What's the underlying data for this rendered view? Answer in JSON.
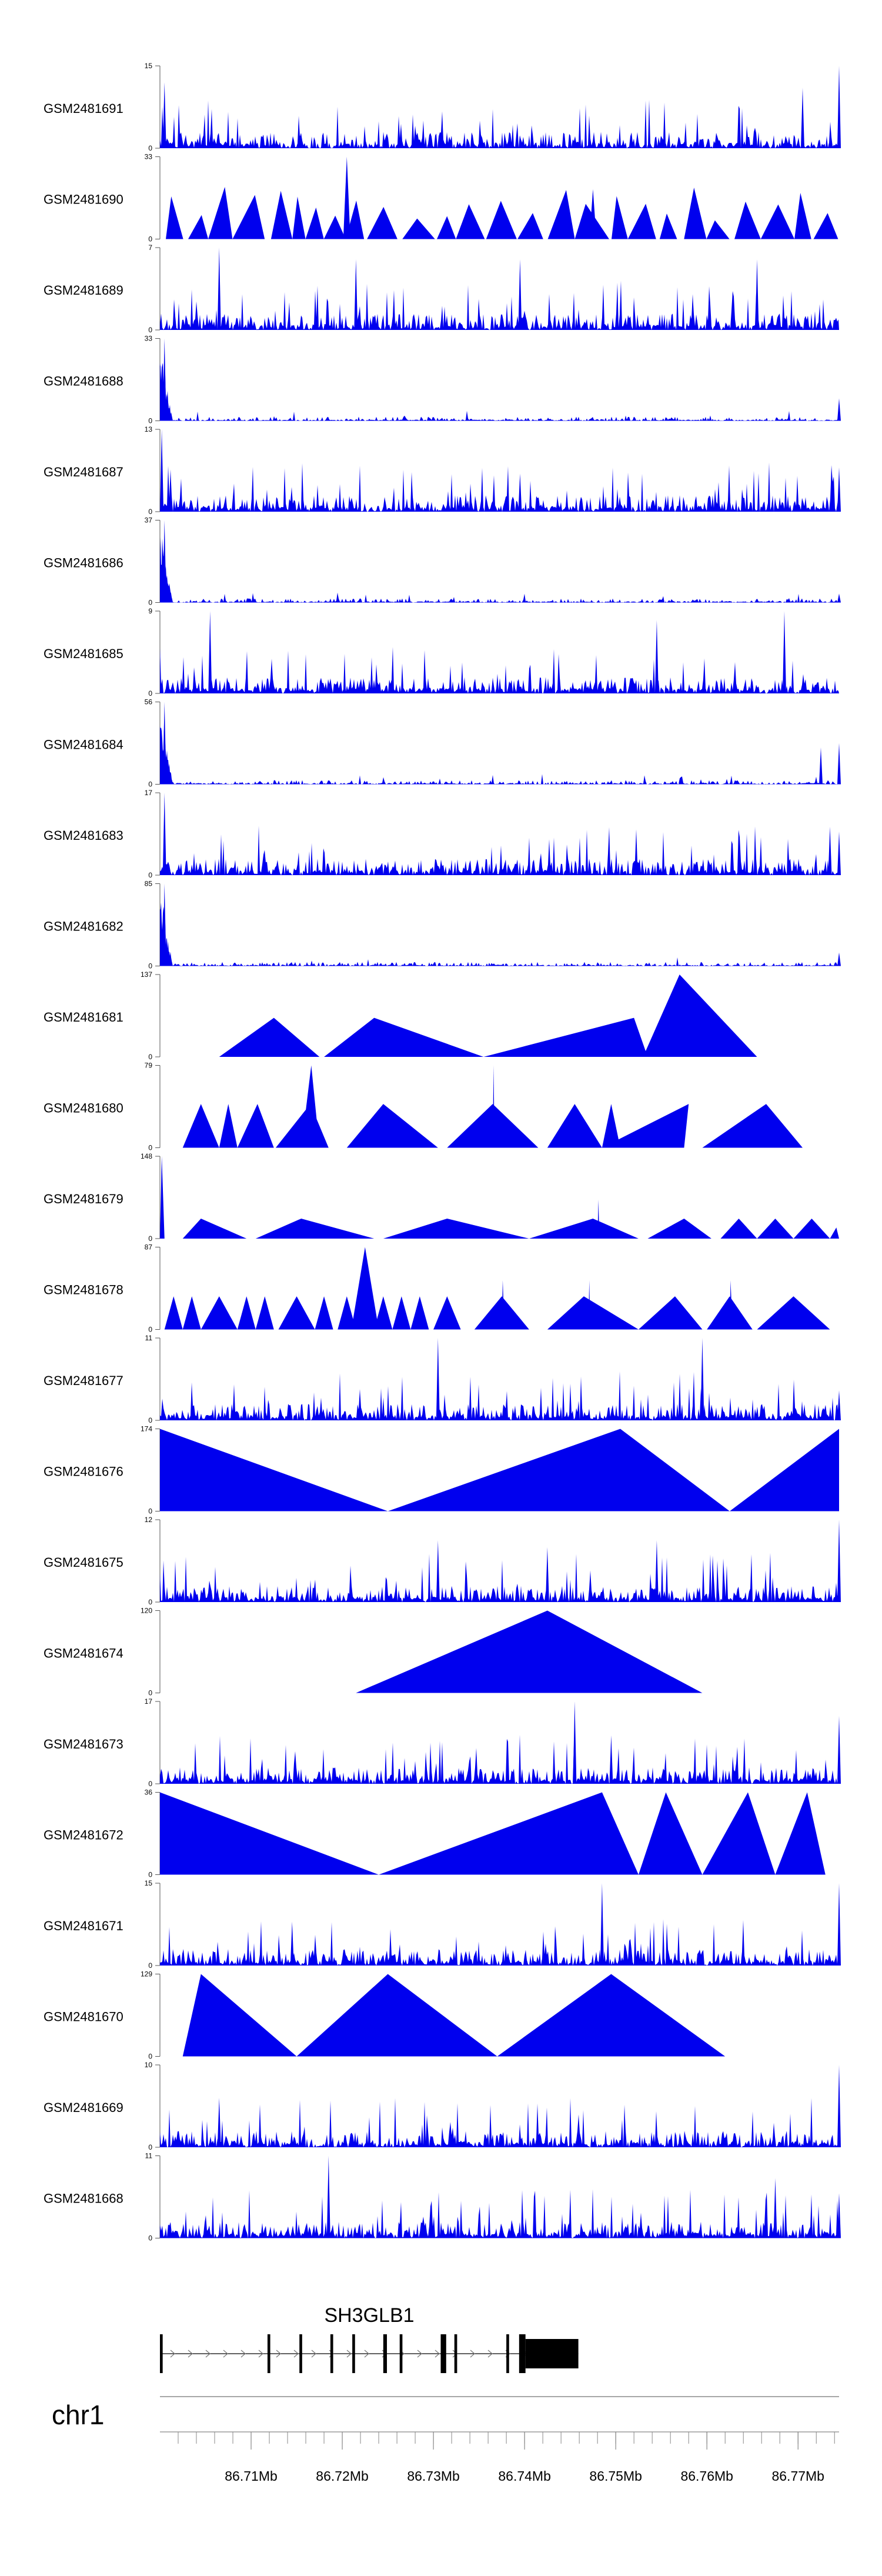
{
  "chart_data": {
    "type": "area",
    "title": "",
    "series_color": "#0000ee",
    "x_unit": "Mb",
    "x_range": [
      86.7,
      86.7745
    ],
    "tracks": [
      {
        "name": "GSM2481691",
        "ymax": 15,
        "style": "noisy",
        "peaks": [
          [
            86.7005,
            12
          ],
          [
            86.7705,
            11
          ],
          [
            86.7745,
            15
          ]
        ]
      },
      {
        "name": "GSM2481690",
        "ymax": 33,
        "style": "triangles",
        "peaks": [
          [
            86.7205,
            33
          ],
          [
            86.7475,
            20
          ]
        ]
      },
      {
        "name": "GSM2481689",
        "ymax": 7,
        "style": "noisy",
        "peaks": [
          [
            86.7065,
            7
          ],
          [
            86.7215,
            6
          ],
          [
            86.7395,
            6
          ],
          [
            86.7655,
            6
          ]
        ]
      },
      {
        "name": "GSM2481688",
        "ymax": 33,
        "style": "noisy_left",
        "peaks": [
          [
            86.7005,
            33
          ],
          [
            86.7745,
            9
          ]
        ]
      },
      {
        "name": "GSM2481687",
        "ymax": 13,
        "style": "noisy",
        "peaks": [
          [
            86.7002,
            13
          ],
          [
            86.7395,
            6
          ],
          [
            86.7745,
            7
          ]
        ]
      },
      {
        "name": "GSM2481686",
        "ymax": 37,
        "style": "noisy_left",
        "peaks": [
          [
            86.7005,
            37
          ],
          [
            86.7745,
            4
          ]
        ]
      },
      {
        "name": "GSM2481685",
        "ymax": 9,
        "style": "noisy",
        "peaks": [
          [
            86.7055,
            9
          ],
          [
            86.7545,
            8
          ],
          [
            86.7685,
            9
          ]
        ]
      },
      {
        "name": "GSM2481684",
        "ymax": 56,
        "style": "noisy_left",
        "peaks": [
          [
            86.7005,
            56
          ],
          [
            86.7725,
            25
          ],
          [
            86.7745,
            28
          ]
        ]
      },
      {
        "name": "GSM2481683",
        "ymax": 17,
        "style": "noisy",
        "peaks": [
          [
            86.7005,
            17
          ],
          [
            86.7735,
            10
          ],
          [
            86.7745,
            9
          ]
        ]
      },
      {
        "name": "GSM2481682",
        "ymax": 85,
        "style": "noisy_left",
        "peaks": [
          [
            86.7005,
            85
          ],
          [
            86.7745,
            14
          ]
        ]
      },
      {
        "name": "GSM2481681",
        "ymax": 137,
        "style": "tri_list",
        "tris": [
          [
            86.7065,
            86.7125,
            86.7175,
            65
          ],
          [
            86.718,
            86.7235,
            86.7355,
            65
          ],
          [
            86.7355,
            86.752,
            86.7535,
            65
          ],
          [
            86.753,
            86.757,
            86.7655,
            137
          ],
          [
            86.7535,
            86.757,
            86.757,
            100
          ]
        ]
      },
      {
        "name": "GSM2481680",
        "ymax": 79,
        "style": "tri_list",
        "tris": [
          [
            86.7025,
            86.7045,
            86.7065,
            42
          ],
          [
            86.7065,
            86.7075,
            86.7085,
            42
          ],
          [
            86.7085,
            86.7107,
            86.7125,
            42
          ],
          [
            86.7127,
            86.7165,
            86.7185,
            42
          ],
          [
            86.7155,
            86.7166,
            86.7175,
            79
          ],
          [
            86.7205,
            86.7245,
            86.7305,
            42
          ],
          [
            86.7245,
            86.7246,
            86.7248,
            30
          ],
          [
            86.7315,
            86.7365,
            86.7415,
            42
          ],
          [
            86.7365,
            86.7366,
            86.7367,
            79
          ],
          [
            86.7425,
            86.7455,
            86.7485,
            42
          ],
          [
            86.7485,
            86.7495,
            86.7505,
            42
          ],
          [
            86.7485,
            86.758,
            86.7575,
            42
          ],
          [
            86.7595,
            86.7665,
            86.7705,
            42
          ]
        ]
      },
      {
        "name": "GSM2481679",
        "ymax": 148,
        "style": "tri_list",
        "tris": [
          [
            86.7,
            86.7002,
            86.7005,
            148
          ],
          [
            86.7025,
            86.7045,
            86.7095,
            36
          ],
          [
            86.7105,
            86.7155,
            86.7235,
            36
          ],
          [
            86.7245,
            86.7315,
            86.7405,
            36
          ],
          [
            86.7405,
            86.7475,
            86.7525,
            36
          ],
          [
            86.748,
            86.7481,
            86.7482,
            70
          ],
          [
            86.7535,
            86.7575,
            86.7605,
            36
          ],
          [
            86.7615,
            86.7635,
            86.7655,
            36
          ],
          [
            86.7655,
            86.7675,
            86.7695,
            36
          ],
          [
            86.7695,
            86.7715,
            86.7735,
            36
          ],
          [
            86.7735,
            86.7742,
            86.7745,
            20
          ]
        ]
      },
      {
        "name": "GSM2481678",
        "ymax": 87,
        "style": "tri_list",
        "tris": [
          [
            86.7005,
            86.7015,
            86.7025,
            35
          ],
          [
            86.7025,
            86.7035,
            86.7045,
            35
          ],
          [
            86.7045,
            86.7065,
            86.7085,
            35
          ],
          [
            86.7085,
            86.7095,
            86.7105,
            35
          ],
          [
            86.7105,
            86.7115,
            86.7125,
            35
          ],
          [
            86.713,
            86.715,
            86.717,
            35
          ],
          [
            86.717,
            86.718,
            86.719,
            35
          ],
          [
            86.7195,
            86.7205,
            86.7215,
            35
          ],
          [
            86.721,
            86.7225,
            86.724,
            87
          ],
          [
            86.7235,
            86.7245,
            86.7255,
            35
          ],
          [
            86.7255,
            86.7265,
            86.7275,
            35
          ],
          [
            86.7275,
            86.7285,
            86.7295,
            35
          ],
          [
            86.73,
            86.7315,
            86.733,
            35
          ],
          [
            86.7345,
            86.7375,
            86.7405,
            35
          ],
          [
            86.7375,
            86.7376,
            86.7378,
            52
          ],
          [
            86.7425,
            86.7465,
            86.7525,
            35
          ],
          [
            86.747,
            86.7471,
            86.7472,
            52
          ],
          [
            86.7525,
            86.7565,
            86.7595,
            35
          ],
          [
            86.76,
            86.7625,
            86.765,
            35
          ],
          [
            86.7625,
            86.7626,
            86.7628,
            52
          ],
          [
            86.7655,
            86.7695,
            86.7735,
            35
          ]
        ]
      },
      {
        "name": "GSM2481677",
        "ymax": 11,
        "style": "noisy",
        "peaks": [
          [
            86.7305,
            11
          ],
          [
            86.7595,
            11
          ],
          [
            86.7745,
            4
          ]
        ]
      },
      {
        "name": "GSM2481676",
        "ymax": 174,
        "style": "tri_list",
        "tris": [
          [
            86.7,
            86.7,
            86.725,
            174
          ],
          [
            86.725,
            86.7505,
            86.7625,
            174
          ],
          [
            86.7505,
            86.7506,
            86.7507,
            60
          ],
          [
            86.7625,
            86.7745,
            86.7745,
            174
          ]
        ]
      },
      {
        "name": "GSM2481675",
        "ymax": 12,
        "style": "noisy",
        "peaks": [
          [
            86.7305,
            9
          ],
          [
            86.7425,
            8
          ],
          [
            86.7545,
            9
          ],
          [
            86.7745,
            12
          ]
        ]
      },
      {
        "name": "GSM2481674",
        "ymax": 120,
        "style": "tri_list",
        "tris": [
          [
            86.7215,
            86.7425,
            86.7595,
            120
          ],
          [
            86.7425,
            86.7426,
            86.7427,
            120
          ]
        ]
      },
      {
        "name": "GSM2481673",
        "ymax": 17,
        "style": "noisy",
        "peaks": [
          [
            86.7455,
            17
          ],
          [
            86.7495,
            10
          ],
          [
            86.7745,
            14
          ]
        ]
      },
      {
        "name": "GSM2481672",
        "ymax": 36,
        "style": "tri_list",
        "tris": [
          [
            86.7,
            86.7,
            86.724,
            36
          ],
          [
            86.724,
            86.7485,
            86.7525,
            36
          ],
          [
            86.7525,
            86.7555,
            86.7595,
            36
          ],
          [
            86.7595,
            86.7645,
            86.7675,
            36
          ],
          [
            86.7675,
            86.771,
            86.773,
            36
          ]
        ]
      },
      {
        "name": "GSM2481671",
        "ymax": 15,
        "style": "noisy",
        "peaks": [
          [
            86.7145,
            8
          ],
          [
            86.7485,
            15
          ],
          [
            86.7745,
            15
          ]
        ]
      },
      {
        "name": "GSM2481670",
        "ymax": 129,
        "style": "tri_list",
        "tris": [
          [
            86.7025,
            86.7045,
            86.715,
            129
          ],
          [
            86.715,
            86.725,
            86.737,
            129
          ],
          [
            86.725,
            86.7251,
            86.7252,
            129
          ],
          [
            86.737,
            86.7495,
            86.762,
            129
          ]
        ]
      },
      {
        "name": "GSM2481669",
        "ymax": 10,
        "style": "noisy",
        "peaks": [
          [
            86.7065,
            6
          ],
          [
            86.7745,
            10
          ]
        ]
      },
      {
        "name": "GSM2481668",
        "ymax": 11,
        "style": "noisy",
        "peaks": [
          [
            86.7185,
            11
          ],
          [
            86.7675,
            8
          ],
          [
            86.7745,
            6
          ]
        ]
      }
    ],
    "gene": {
      "name": "SH3GLB1",
      "strand": "+",
      "start": 86.7,
      "end": 86.7459,
      "exons": [
        [
          86.7,
          86.7003
        ],
        [
          86.7118,
          86.7121
        ],
        [
          86.7153,
          86.7156
        ],
        [
          86.7187,
          86.719
        ],
        [
          86.7211,
          86.7214
        ],
        [
          86.7245,
          86.7249
        ],
        [
          86.7263,
          86.7266
        ],
        [
          86.7308,
          86.7314
        ],
        [
          86.7323,
          86.7326
        ],
        [
          86.738,
          86.7383
        ],
        [
          86.7394,
          86.7401
        ],
        [
          86.7401,
          86.7459
        ]
      ]
    },
    "axis": {
      "chromosome": "chr1",
      "tick_labels": [
        "86.71Mb",
        "86.72Mb",
        "86.73Mb",
        "86.74Mb",
        "86.75Mb",
        "86.76Mb",
        "86.77Mb"
      ],
      "tick_values": [
        86.71,
        86.72,
        86.73,
        86.74,
        86.75,
        86.76,
        86.77
      ],
      "minor_step": 0.002
    }
  }
}
